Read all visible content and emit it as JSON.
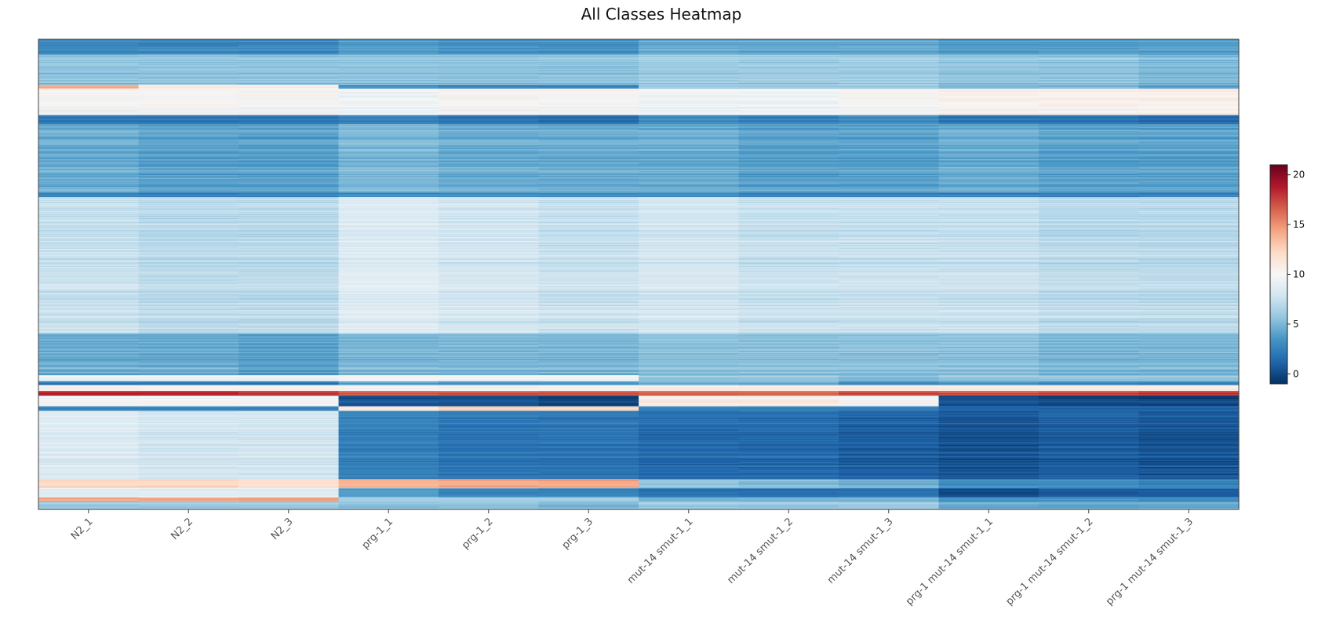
{
  "chart_data": {
    "type": "heatmap",
    "title": "All Classes Heatmap",
    "xlabel": "",
    "ylabel": "",
    "columns": [
      "N2_1",
      "N2_2",
      "N2_3",
      "prg-1_1",
      "prg-1_2",
      "prg-1_3",
      "mut-14 smut-1_1",
      "mut-14 smut-1_2",
      "mut-14 smut-1_3",
      "prg-1 mut-14 smut-1_1",
      "prg-1 mut-14 smut-1_2",
      "prg-1 mut-14 smut-1_3"
    ],
    "row_labels_shown": false,
    "colorbar": {
      "colormap": "RdBu_r",
      "range": [
        -1,
        21
      ],
      "ticks": [
        0,
        5,
        10,
        15,
        20
      ],
      "stops": [
        "#053061",
        "#2166ac",
        "#4393c3",
        "#92c5de",
        "#d1e5f0",
        "#f7f7f7",
        "#fddbc7",
        "#f4a582",
        "#d6604d",
        "#b2182b",
        "#67001f"
      ]
    },
    "row_blocks": [
      {
        "rows": 20,
        "values": [
          3.0,
          3.0,
          3.0,
          4.0,
          3.5,
          3.5,
          4.5,
          4.5,
          4.5,
          4.0,
          4.0,
          4.0
        ]
      },
      {
        "rows": 40,
        "values": [
          5.5,
          5.5,
          5.5,
          5.5,
          5.5,
          5.5,
          6.0,
          6.0,
          6.0,
          5.5,
          5.5,
          5.0
        ]
      },
      {
        "rows": 5,
        "values": [
          14.0,
          11.0,
          11.0,
          3.5,
          3.0,
          3.0,
          6.0,
          6.0,
          6.0,
          5.0,
          5.0,
          4.0
        ]
      },
      {
        "rows": 35,
        "values": [
          10.0,
          10.0,
          10.0,
          9.5,
          10.0,
          10.0,
          9.5,
          9.5,
          10.0,
          10.5,
          10.5,
          10.5
        ]
      },
      {
        "rows": 12,
        "values": [
          2.0,
          2.0,
          2.0,
          2.5,
          2.0,
          1.5,
          3.0,
          2.5,
          3.0,
          2.0,
          2.0,
          1.5
        ]
      },
      {
        "rows": 90,
        "values": [
          4.5,
          4.0,
          4.0,
          5.0,
          4.5,
          4.5,
          4.5,
          4.0,
          4.0,
          4.5,
          4.0,
          4.0
        ]
      },
      {
        "rows": 6,
        "values": [
          2.5,
          2.5,
          2.5,
          3.0,
          3.0,
          3.0,
          3.0,
          2.5,
          2.5,
          2.5,
          2.5,
          2.5
        ]
      },
      {
        "rows": 180,
        "values": [
          7.5,
          7.0,
          7.0,
          8.5,
          8.0,
          7.5,
          8.0,
          7.5,
          7.5,
          7.5,
          7.0,
          7.0
        ]
      },
      {
        "rows": 55,
        "values": [
          4.5,
          4.5,
          4.0,
          5.0,
          5.0,
          5.0,
          5.5,
          5.5,
          5.5,
          5.5,
          5.0,
          5.0
        ]
      },
      {
        "rows": 8,
        "values": [
          9.5,
          9.5,
          9.5,
          10.0,
          10.0,
          10.0,
          6.0,
          6.0,
          5.5,
          6.0,
          6.0,
          6.0
        ]
      },
      {
        "rows": 5,
        "values": [
          2.0,
          2.0,
          2.0,
          4.0,
          3.5,
          3.5,
          4.5,
          4.5,
          3.0,
          3.5,
          3.0,
          2.5
        ]
      },
      {
        "rows": 8,
        "values": [
          10.5,
          10.5,
          10.5,
          10.0,
          10.0,
          10.0,
          11.0,
          11.0,
          11.0,
          11.0,
          11.0,
          11.0
        ]
      },
      {
        "rows": 6,
        "values": [
          18.5,
          18.5,
          18.0,
          17.0,
          17.0,
          17.0,
          16.5,
          16.5,
          17.5,
          17.0,
          17.5,
          18.0
        ]
      },
      {
        "rows": 14,
        "values": [
          10.0,
          10.0,
          10.0,
          0.5,
          0.5,
          0.0,
          11.0,
          11.0,
          10.0,
          0.5,
          0.0,
          0.0
        ]
      },
      {
        "rows": 6,
        "values": [
          2.5,
          2.5,
          2.5,
          11.0,
          12.5,
          12.0,
          2.5,
          2.5,
          2.5,
          1.0,
          1.0,
          1.0
        ]
      },
      {
        "rows": 90,
        "values": [
          8.5,
          8.0,
          8.0,
          2.5,
          2.0,
          2.0,
          1.5,
          1.5,
          1.0,
          0.5,
          1.0,
          0.5
        ]
      },
      {
        "rows": 12,
        "values": [
          12.0,
          12.0,
          11.5,
          13.5,
          14.0,
          14.0,
          5.5,
          5.0,
          4.5,
          3.0,
          3.0,
          2.5
        ]
      },
      {
        "rows": 12,
        "values": [
          9.0,
          9.0,
          9.0,
          4.0,
          3.0,
          3.0,
          2.0,
          2.0,
          2.0,
          0.5,
          1.0,
          1.0
        ]
      },
      {
        "rows": 6,
        "values": [
          14.0,
          14.0,
          14.0,
          6.0,
          6.0,
          6.0,
          4.5,
          4.5,
          4.5,
          3.0,
          3.0,
          3.0
        ]
      },
      {
        "rows": 10,
        "values": [
          6.0,
          6.0,
          6.0,
          5.5,
          5.5,
          5.0,
          6.0,
          6.0,
          6.0,
          4.5,
          4.5,
          4.5
        ]
      }
    ]
  }
}
